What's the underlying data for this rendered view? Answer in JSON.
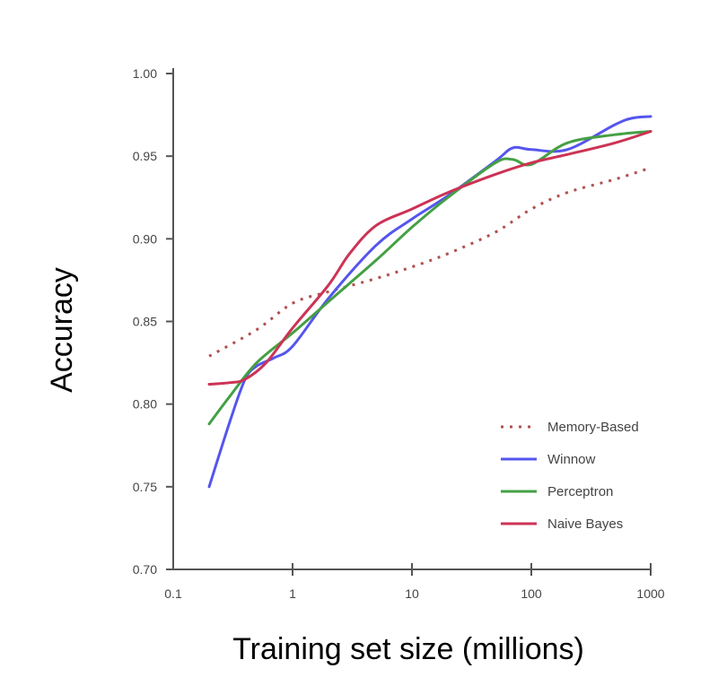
{
  "chart_data": {
    "type": "line",
    "title": "",
    "xlabel": "Training set size (millions)",
    "ylabel": "Accuracy",
    "xscale": "log",
    "xlim": [
      0.1,
      1000
    ],
    "ylim": [
      0.7,
      1.0
    ],
    "xticks": [
      0.1,
      1,
      10,
      100,
      1000
    ],
    "xtick_labels": [
      "0.1",
      "1",
      "10",
      "100",
      "1000"
    ],
    "yticks": [
      0.7,
      0.75,
      0.8,
      0.85,
      0.9,
      0.95,
      1.0
    ],
    "ytick_labels": [
      "0.70",
      "0.75",
      "0.80",
      "0.85",
      "0.90",
      "0.95",
      "1.00"
    ],
    "grid": false,
    "legend_position": "bottom-right",
    "series": [
      {
        "name": "Memory-Based",
        "color": "#b05050",
        "style": "dotted",
        "x": [
          0.2,
          0.5,
          1,
          2,
          5,
          10,
          20,
          50,
          100,
          200,
          500,
          1000
        ],
        "y": [
          0.829,
          0.845,
          0.861,
          0.868,
          0.876,
          0.883,
          0.891,
          0.904,
          0.918,
          0.928,
          0.936,
          0.943
        ]
      },
      {
        "name": "Winnow",
        "color": "#5555ee",
        "style": "solid",
        "x": [
          0.2,
          0.3,
          0.4,
          0.5,
          0.7,
          1,
          2,
          5,
          10,
          20,
          50,
          70,
          100,
          200,
          500,
          700,
          1000
        ],
        "y": [
          0.75,
          0.79,
          0.815,
          0.823,
          0.828,
          0.835,
          0.864,
          0.896,
          0.912,
          0.926,
          0.947,
          0.955,
          0.954,
          0.954,
          0.969,
          0.973,
          0.974
        ]
      },
      {
        "name": "Perceptron",
        "color": "#44a044",
        "style": "solid",
        "x": [
          0.2,
          0.3,
          0.5,
          1,
          2,
          5,
          10,
          20,
          50,
          70,
          100,
          200,
          500,
          1000
        ],
        "y": [
          0.788,
          0.805,
          0.825,
          0.843,
          0.862,
          0.887,
          0.907,
          0.925,
          0.946,
          0.948,
          0.945,
          0.958,
          0.963,
          0.965
        ]
      },
      {
        "name": "Naive Bayes",
        "color": "#cc3355",
        "style": "solid",
        "x": [
          0.2,
          0.3,
          0.4,
          0.6,
          1,
          2,
          3,
          5,
          10,
          20,
          50,
          100,
          200,
          500,
          1000
        ],
        "y": [
          0.812,
          0.813,
          0.815,
          0.825,
          0.846,
          0.872,
          0.891,
          0.908,
          0.918,
          0.928,
          0.939,
          0.946,
          0.951,
          0.958,
          0.965
        ]
      }
    ]
  }
}
